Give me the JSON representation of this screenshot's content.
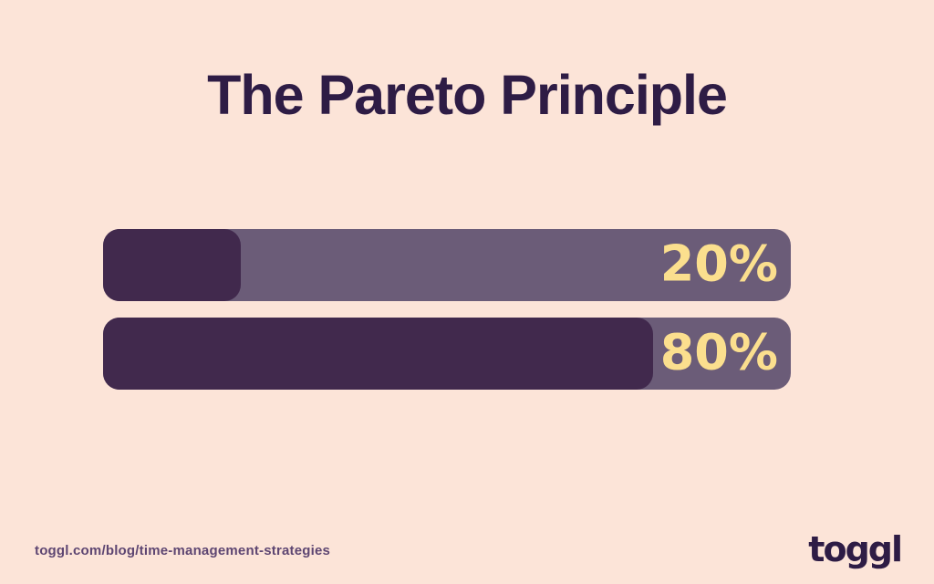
{
  "title": "The Pareto Principle",
  "chart_data": {
    "type": "bar",
    "orientation": "horizontal",
    "title": "The Pareto Principle",
    "bars": [
      {
        "label": "20%",
        "value": 20
      },
      {
        "label": "80%",
        "value": 80
      }
    ],
    "value_range": [
      0,
      100
    ],
    "grid": false,
    "legend": false,
    "track_color": "#6b5c78",
    "fill_color": "#41294d",
    "label_color": "#fbdf8e"
  },
  "footer": {
    "url": "toggl.com/blog/time-management-strategies",
    "logo": "toggl"
  },
  "colors": {
    "background": "#fce4d8",
    "title_text": "#2e1c45",
    "footer_text": "#5e4672"
  }
}
